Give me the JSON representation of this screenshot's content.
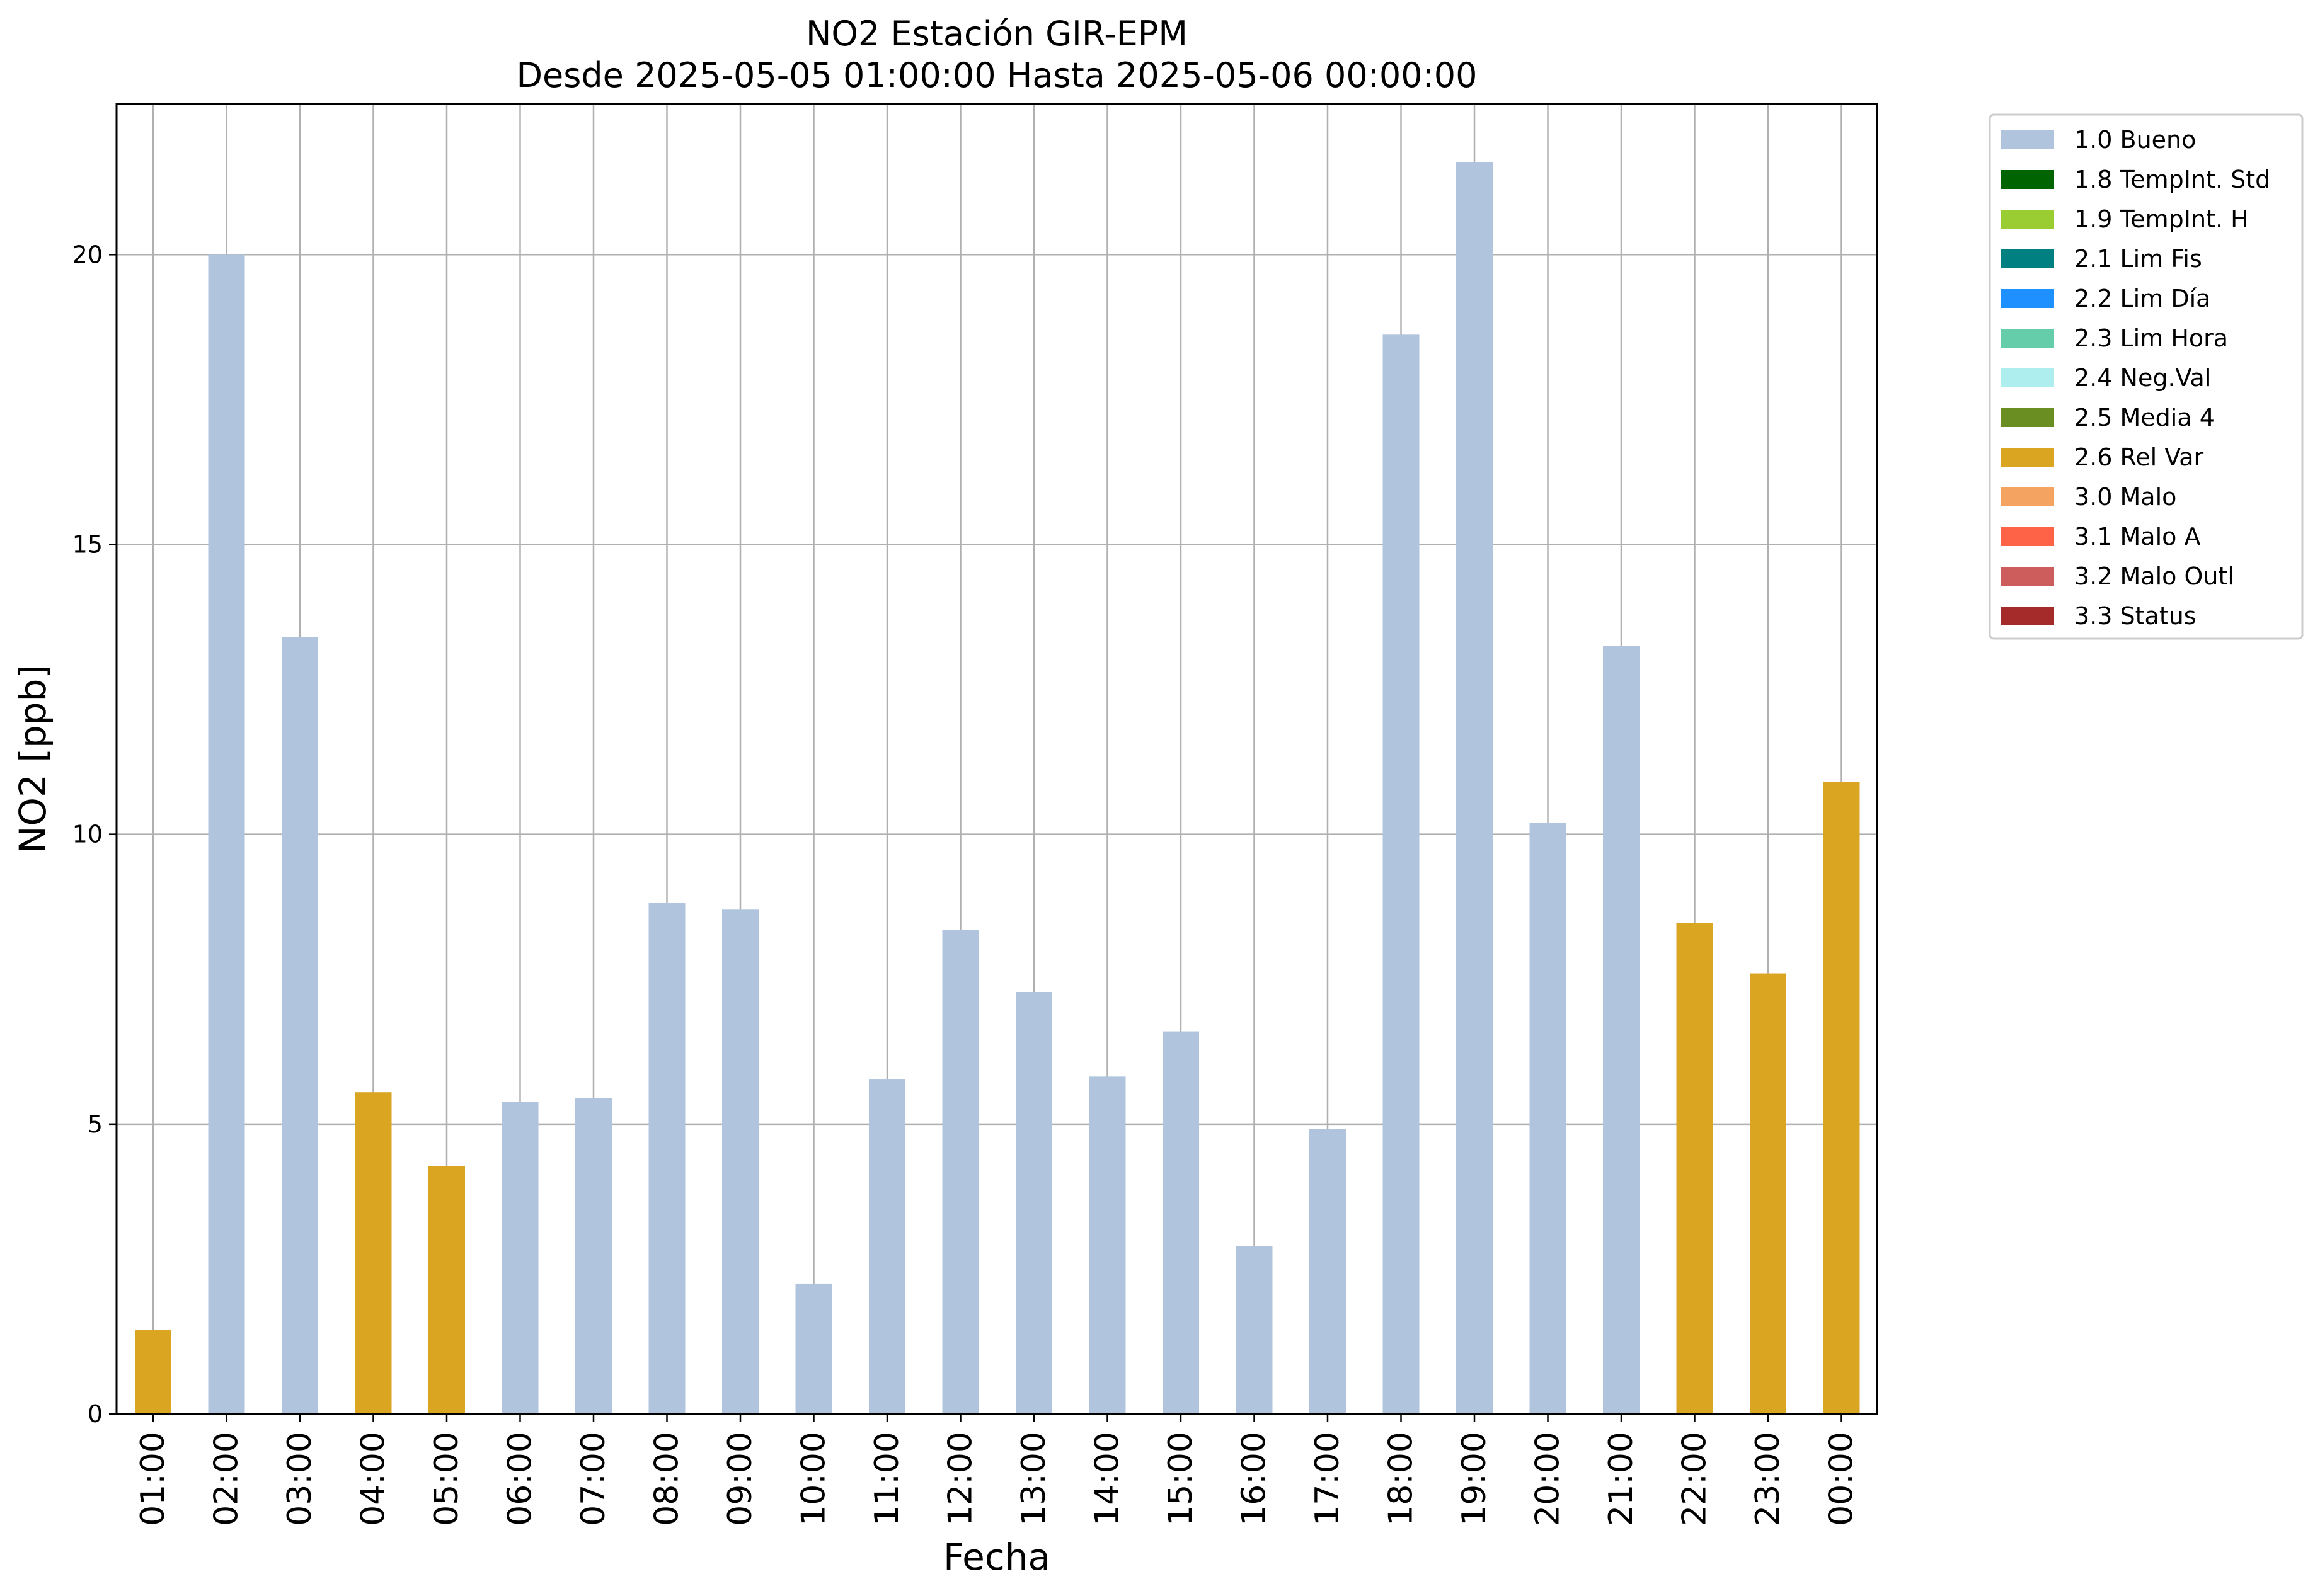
{
  "chart_data": {
    "type": "bar",
    "title": "NO2 Estación GIR-EPM",
    "subtitle": "Desde 2025-05-05 01:00:00 Hasta 2025-05-06 00:00:00",
    "xlabel": "Fecha",
    "ylabel": "NO2 [ppb]",
    "ylim": [
      0,
      22.6
    ],
    "yticks": [
      "0",
      "5",
      "10",
      "15",
      "20"
    ],
    "ytick_values": [
      0,
      5,
      10,
      15,
      20
    ],
    "grid": true,
    "legend_position": "outside-top-right",
    "categories": [
      "01:00",
      "02:00",
      "03:00",
      "04:00",
      "05:00",
      "06:00",
      "07:00",
      "08:00",
      "09:00",
      "10:00",
      "11:00",
      "12:00",
      "13:00",
      "14:00",
      "15:00",
      "16:00",
      "17:00",
      "18:00",
      "19:00",
      "20:00",
      "21:00",
      "22:00",
      "23:00",
      "00:00"
    ],
    "values": [
      1.45,
      20.0,
      13.4,
      5.55,
      4.28,
      5.38,
      5.45,
      8.82,
      8.7,
      2.25,
      5.78,
      8.35,
      7.28,
      5.82,
      6.6,
      2.9,
      4.92,
      18.62,
      21.6,
      10.2,
      13.25,
      8.47,
      7.6,
      10.9
    ],
    "flags": [
      "2.6 Rel Var",
      "1.0 Bueno",
      "1.0 Bueno",
      "2.6 Rel Var",
      "2.6 Rel Var",
      "1.0 Bueno",
      "1.0 Bueno",
      "1.0 Bueno",
      "1.0 Bueno",
      "1.0 Bueno",
      "1.0 Bueno",
      "1.0 Bueno",
      "1.0 Bueno",
      "1.0 Bueno",
      "1.0 Bueno",
      "1.0 Bueno",
      "1.0 Bueno",
      "1.0 Bueno",
      "1.0 Bueno",
      "1.0 Bueno",
      "1.0 Bueno",
      "2.6 Rel Var",
      "2.6 Rel Var",
      "2.6 Rel Var"
    ],
    "legend": [
      {
        "label": "1.0 Bueno",
        "color": "#b0c4de"
      },
      {
        "label": "1.8 TempInt. Std",
        "color": "#006400"
      },
      {
        "label": "1.9 TempInt. H",
        "color": "#9acd32"
      },
      {
        "label": "2.1 Lim Fis",
        "color": "#008080"
      },
      {
        "label": "2.2 Lim Día",
        "color": "#1e90ff"
      },
      {
        "label": "2.3 Lim Hora",
        "color": "#66cdaa"
      },
      {
        "label": "2.4 Neg.Val",
        "color": "#afeeee"
      },
      {
        "label": "2.5 Media 4",
        "color": "#6b8e23"
      },
      {
        "label": "2.6 Rel Var",
        "color": "#daa520"
      },
      {
        "label": "3.0 Malo",
        "color": "#f4a460"
      },
      {
        "label": "3.1 Malo A",
        "color": "#ff6347"
      },
      {
        "label": "3.2 Malo Outl",
        "color": "#cd5c5c"
      },
      {
        "label": "3.3 Status",
        "color": "#a52a2a"
      }
    ]
  }
}
